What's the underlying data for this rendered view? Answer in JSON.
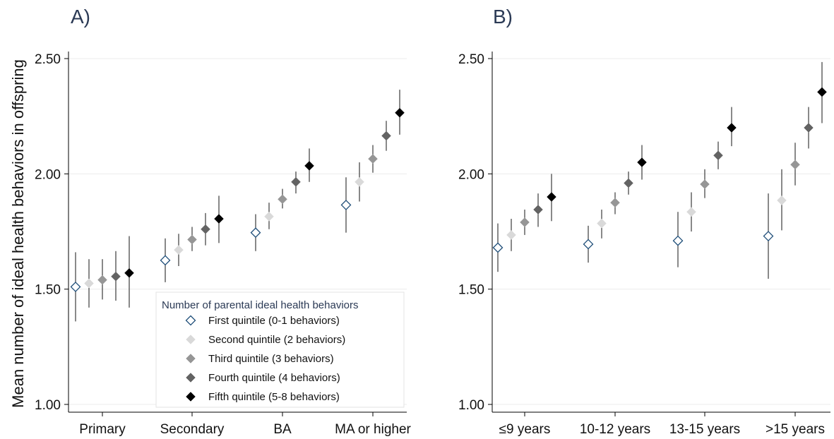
{
  "ylabel": "Mean number of ideal health behaviors in offspring",
  "legend": {
    "title": "Number of parental ideal health behaviors",
    "entries": [
      {
        "label": "First quintile (0-1 behaviors)",
        "color": "#1f4e79",
        "fill": "#ffffff",
        "hollow": true
      },
      {
        "label": "Second quintile (2 behaviors)",
        "color": "#d9d9d9",
        "fill": "#d9d9d9",
        "hollow": false
      },
      {
        "label": "Third quintile (3 behaviors)",
        "color": "#969696",
        "fill": "#969696",
        "hollow": false
      },
      {
        "label": "Fourth quintile (4 behaviors)",
        "color": "#636363",
        "fill": "#636363",
        "hollow": false
      },
      {
        "label": "Fifth quintile (5-8 behaviors)",
        "color": "#000000",
        "fill": "#000000",
        "hollow": false
      }
    ]
  },
  "chart_data": [
    {
      "type": "scatter",
      "panel": "A)",
      "categories": [
        "Primary",
        "Secondary",
        "BA",
        "MA or higher"
      ],
      "ylim": [
        1.0,
        2.5
      ],
      "yticks": [
        "1.00",
        "1.50",
        "2.00",
        "2.50"
      ],
      "grid": true,
      "legend_position": "bottom-right",
      "series": [
        {
          "name": "First quintile (0-1 behaviors)",
          "values": [
            1.51,
            1.625,
            1.745,
            1.865
          ],
          "lower": [
            1.36,
            1.53,
            1.665,
            1.745
          ],
          "upper": [
            1.66,
            1.72,
            1.825,
            1.985
          ]
        },
        {
          "name": "Second quintile (2 behaviors)",
          "values": [
            1.525,
            1.67,
            1.815,
            1.965
          ],
          "lower": [
            1.42,
            1.6,
            1.76,
            1.88
          ],
          "upper": [
            1.63,
            1.74,
            1.875,
            2.05
          ]
        },
        {
          "name": "Third quintile (3 behaviors)",
          "values": [
            1.54,
            1.715,
            1.89,
            2.065
          ],
          "lower": [
            1.455,
            1.665,
            1.85,
            2.005
          ],
          "upper": [
            1.63,
            1.77,
            1.935,
            2.125
          ]
        },
        {
          "name": "Fourth quintile (4 behaviors)",
          "values": [
            1.555,
            1.76,
            1.965,
            2.165
          ],
          "lower": [
            1.45,
            1.69,
            1.915,
            2.1
          ],
          "upper": [
            1.665,
            1.83,
            2.01,
            2.23
          ]
        },
        {
          "name": "Fifth quintile (5-8 behaviors)",
          "values": [
            1.57,
            1.805,
            2.035,
            2.265
          ],
          "lower": [
            1.42,
            1.7,
            1.965,
            2.17
          ],
          "upper": [
            1.73,
            1.905,
            2.11,
            2.365
          ]
        }
      ]
    },
    {
      "type": "scatter",
      "panel": "B)",
      "categories": [
        "≤9 years",
        "10-12 years",
        "13-15 years",
        ">15 years"
      ],
      "ylim": [
        1.0,
        2.5
      ],
      "yticks": [
        "1.00",
        "1.50",
        "2.00",
        "2.50"
      ],
      "grid": true,
      "series": [
        {
          "name": "First quintile (0-1 behaviors)",
          "values": [
            1.68,
            1.695,
            1.71,
            1.73
          ],
          "lower": [
            1.575,
            1.615,
            1.595,
            1.545
          ],
          "upper": [
            1.785,
            1.775,
            1.835,
            1.915
          ]
        },
        {
          "name": "Second quintile (2 behaviors)",
          "values": [
            1.735,
            1.785,
            1.835,
            1.885
          ],
          "lower": [
            1.665,
            1.72,
            1.75,
            1.755
          ],
          "upper": [
            1.805,
            1.845,
            1.92,
            2.02
          ]
        },
        {
          "name": "Third quintile (3 behaviors)",
          "values": [
            1.79,
            1.875,
            1.955,
            2.04
          ],
          "lower": [
            1.735,
            1.825,
            1.895,
            1.95
          ],
          "upper": [
            1.845,
            1.92,
            2.02,
            2.135
          ]
        },
        {
          "name": "Fourth quintile (4 behaviors)",
          "values": [
            1.845,
            1.96,
            2.08,
            2.2
          ],
          "lower": [
            1.77,
            1.91,
            2.02,
            2.11
          ],
          "upper": [
            1.915,
            2.01,
            2.14,
            2.29
          ]
        },
        {
          "name": "Fifth quintile (5-8 behaviors)",
          "values": [
            1.9,
            2.05,
            2.2,
            2.355
          ],
          "lower": [
            1.795,
            1.975,
            2.12,
            2.22
          ],
          "upper": [
            2.0,
            2.125,
            2.29,
            2.485
          ]
        }
      ]
    }
  ]
}
